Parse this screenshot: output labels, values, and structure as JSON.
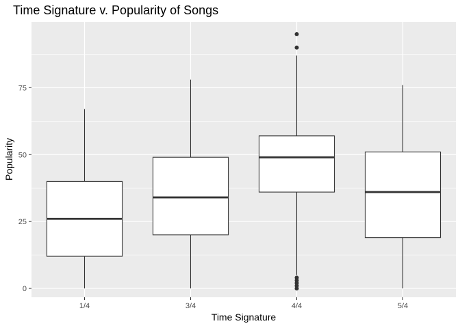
{
  "chart_data": {
    "type": "boxplot",
    "title": "Time Signature v. Popularity of Songs",
    "xlabel": "Time Signature",
    "ylabel": "Popularity",
    "categories": [
      "1/4",
      "3/4",
      "4/4",
      "5/4"
    ],
    "ylim": [
      -3.3,
      99.6
    ],
    "y_ticks": [
      0,
      25,
      50,
      75
    ],
    "grid": true,
    "background": "#ebebeb",
    "grid_color": "#ffffff",
    "box_fill": "#ffffff",
    "line_color": "#333333",
    "boxes": [
      {
        "category": "1/4",
        "min": 0,
        "q1": 12,
        "median": 26,
        "q3": 40,
        "max": 67,
        "outliers": []
      },
      {
        "category": "3/4",
        "min": 0,
        "q1": 20,
        "median": 34,
        "q3": 49,
        "max": 78,
        "outliers": []
      },
      {
        "category": "4/4",
        "min": 5,
        "q1": 36,
        "median": 49,
        "q3": 57,
        "max": 87,
        "outliers": [
          90,
          95,
          4,
          3,
          2,
          1,
          0
        ]
      },
      {
        "category": "5/4",
        "min": 0,
        "q1": 19,
        "median": 36,
        "q3": 51,
        "max": 76,
        "outliers": []
      }
    ]
  }
}
